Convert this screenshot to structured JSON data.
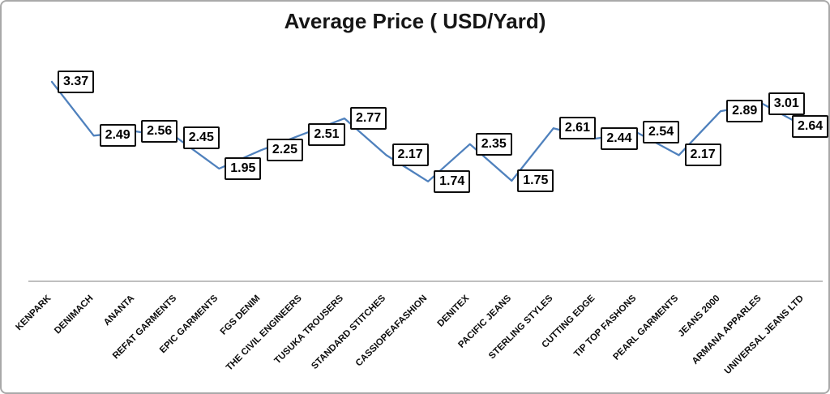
{
  "chart_data": {
    "type": "line",
    "title": "Average Price ( USD/Yard)",
    "categories": [
      "KENPARK",
      "DENIMACH",
      "ANANTA",
      "REFAT GARMENTS",
      "EPIC GARMENTS",
      "FGS DENIM",
      "THE CIVIL ENGINEERS",
      "TUSUKA TROUSERS",
      "STANDARD STITCHES",
      "CASSIOPEAFASHION",
      "DENITEX",
      "PACIFIC JEANS",
      "STERLING STYLES",
      "CUTTING EDGE",
      "TIP TOP FASHONS",
      "PEARL GARMENTS",
      "JEANS 2000",
      "ARMANA APPARLES",
      "UNIVERSAL JEANS LTD"
    ],
    "values": [
      3.37,
      2.49,
      2.56,
      2.45,
      1.95,
      2.25,
      2.51,
      2.77,
      2.17,
      1.74,
      2.35,
      1.75,
      2.61,
      2.44,
      2.54,
      2.17,
      2.89,
      3.01,
      2.64
    ],
    "xlabel": "",
    "ylabel": "",
    "ylim": [
      0,
      4.6
    ],
    "grid": false,
    "legend": false,
    "data_labels_visible": true,
    "x_label_rotation_deg": 45,
    "colors": {
      "line": "#4F81BD",
      "data_label_border": "#0D0D0D",
      "data_label_fill": "#FFFFFF",
      "axis_line": "#BFBFBF",
      "frame_border": "#A9A9A9",
      "text": "#0D0D0D"
    }
  }
}
